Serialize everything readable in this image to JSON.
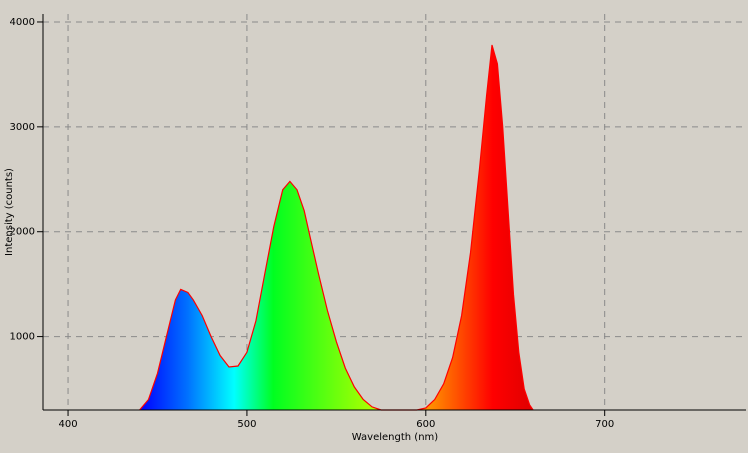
{
  "chart_data": {
    "type": "area",
    "x_label": "Wavelength (nm)",
    "y_label": "Intensity (counts)",
    "x": [
      440,
      445,
      450,
      455,
      460,
      463,
      467,
      470,
      475,
      480,
      485,
      490,
      495,
      500,
      505,
      510,
      515,
      520,
      524,
      528,
      532,
      536,
      540,
      545,
      550,
      555,
      560,
      565,
      570,
      575,
      595,
      600,
      605,
      610,
      615,
      620,
      625,
      630,
      634,
      637,
      640,
      643,
      646,
      649,
      652,
      655,
      658,
      660
    ],
    "values": [
      300,
      400,
      650,
      1000,
      1350,
      1450,
      1420,
      1350,
      1200,
      1000,
      820,
      710,
      720,
      850,
      1150,
      1600,
      2050,
      2400,
      2480,
      2400,
      2200,
      1900,
      1600,
      1250,
      950,
      700,
      520,
      400,
      330,
      300,
      300,
      320,
      400,
      550,
      800,
      1200,
      1800,
      2600,
      3300,
      3780,
      3600,
      3000,
      2200,
      1400,
      850,
      500,
      350,
      300
    ],
    "color": "#ff0000",
    "xlim": [
      386,
      779
    ],
    "ylim": [
      300,
      4076
    ],
    "xticks": [
      400,
      500,
      600,
      700
    ],
    "yticks": [
      1000,
      2000,
      3000,
      4000
    ],
    "grid": true
  }
}
